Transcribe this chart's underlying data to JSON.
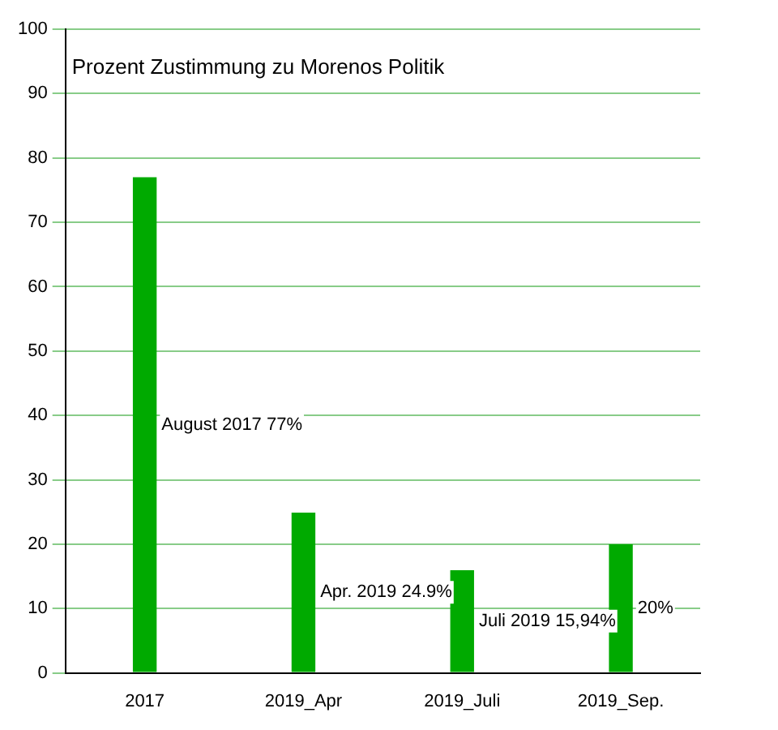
{
  "chart_data": {
    "type": "bar",
    "title": "Prozent Zustimmung zu Morenos Politik",
    "categories": [
      "2017",
      "2019_Apr",
      "2019_Juli",
      "2019_Sep."
    ],
    "values": [
      77,
      24.9,
      15.94,
      20
    ],
    "color": "#00aa00",
    "ylim": [
      0,
      100
    ],
    "yticks": [
      0,
      10,
      20,
      30,
      40,
      50,
      60,
      70,
      80,
      90,
      100
    ],
    "grid": "y",
    "annotations": [
      "August 2017 77%",
      "Apr. 2019 24.9%",
      "Juli 2019 15,94%",
      "20%"
    ]
  }
}
